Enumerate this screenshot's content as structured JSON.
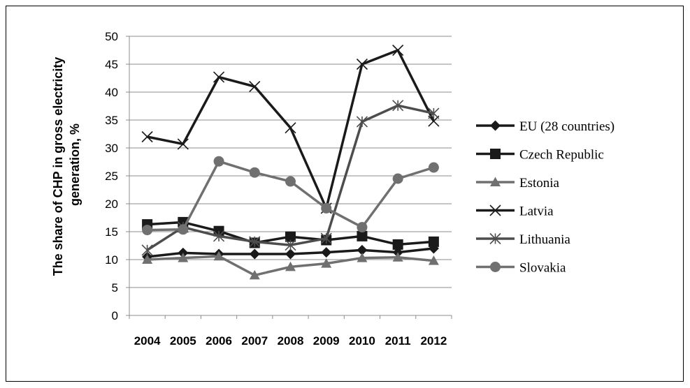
{
  "chart_data": {
    "type": "line",
    "title": "",
    "xlabel": "",
    "ylabel_lines": [
      "The share of CHP in gross electricity",
      "generation, %"
    ],
    "ylim": [
      0,
      50
    ],
    "yticks": [
      "0",
      "5",
      "10",
      "15",
      "20",
      "25",
      "30",
      "35",
      "40",
      "45",
      "50"
    ],
    "categories": [
      "2004",
      "2005",
      "2006",
      "2007",
      "2008",
      "2009",
      "2010",
      "2011",
      "2012"
    ],
    "grid": "horizontal",
    "legend_position": "right",
    "series": [
      {
        "name": "EU (28 countries)",
        "color": "#1a1a1a",
        "marker": "diamond",
        "values": [
          10.5,
          11.2,
          11.0,
          11.0,
          11.0,
          11.3,
          11.7,
          11.3,
          12.0
        ]
      },
      {
        "name": "Czech Republic",
        "color": "#1a1a1a",
        "marker": "square",
        "values": [
          16.3,
          16.7,
          15.1,
          13.0,
          14.1,
          13.5,
          14.2,
          12.7,
          13.2
        ]
      },
      {
        "name": "Estonia",
        "color": "#707070",
        "marker": "triangle",
        "values": [
          10.0,
          10.3,
          10.6,
          7.2,
          8.7,
          9.3,
          10.3,
          10.4,
          9.8
        ]
      },
      {
        "name": "Latvia",
        "color": "#1a1a1a",
        "marker": "x",
        "values": [
          32.0,
          30.7,
          42.7,
          41.0,
          33.6,
          19.2,
          45.0,
          47.5,
          34.8
        ]
      },
      {
        "name": "Lithuania",
        "color": "#4d4d4d",
        "marker": "star",
        "values": [
          11.7,
          15.8,
          14.2,
          13.2,
          12.6,
          13.8,
          34.7,
          37.6,
          36.2
        ]
      },
      {
        "name": "Slovakia",
        "color": "#707070",
        "marker": "circle",
        "values": [
          15.3,
          15.4,
          27.6,
          25.6,
          24.0,
          19.2,
          15.8,
          24.5,
          26.5
        ]
      }
    ]
  }
}
